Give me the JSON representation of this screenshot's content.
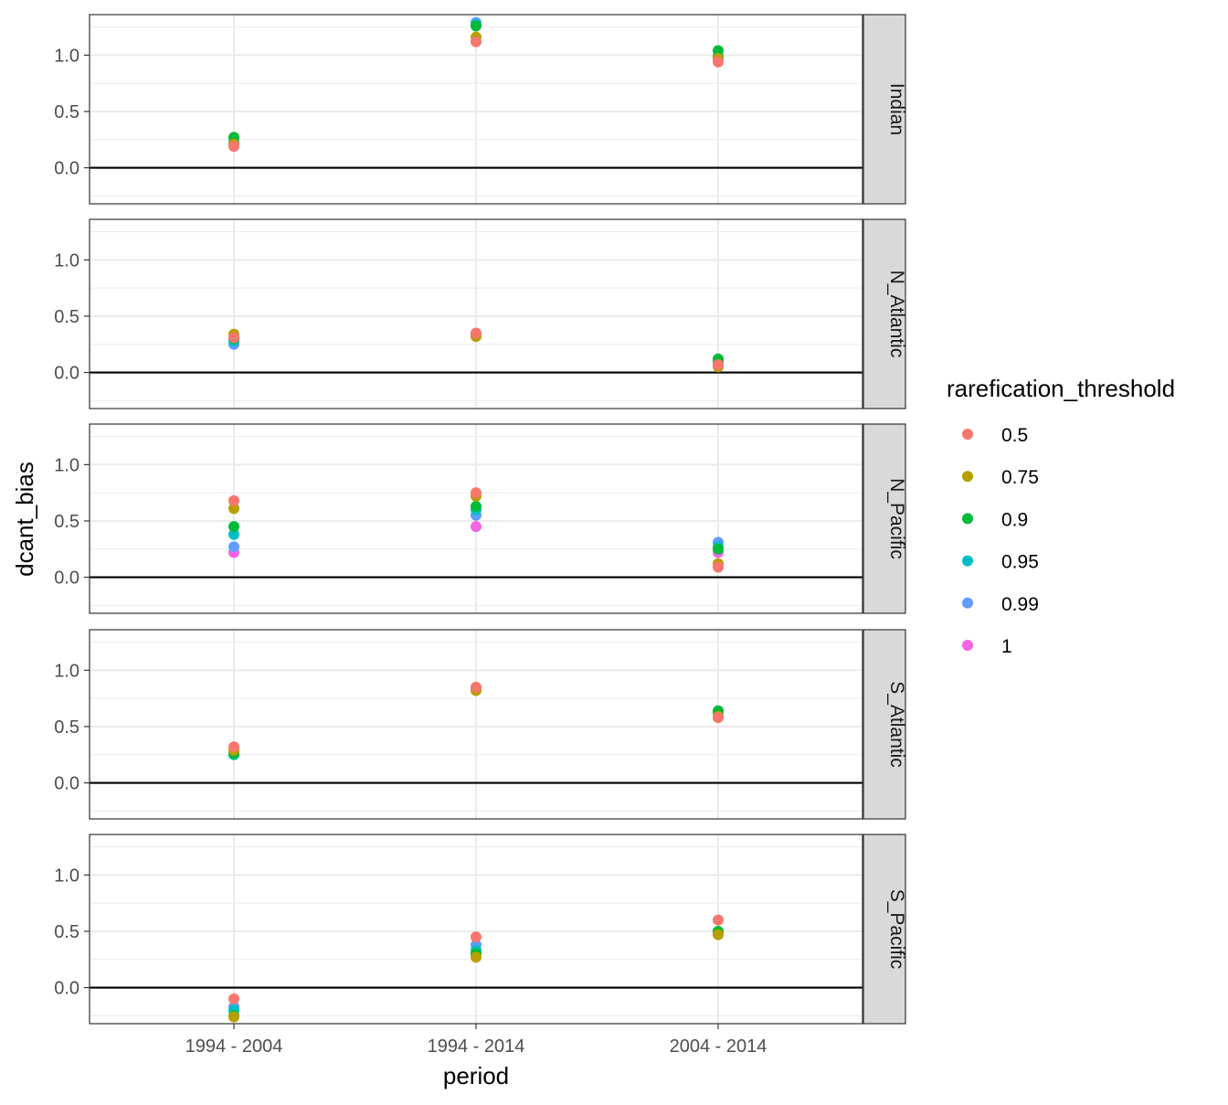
{
  "chart_data": {
    "type": "scatter",
    "facet_by": "region",
    "xlabel": "period",
    "ylabel": "dcant_bias",
    "categories": [
      "1994 - 2004",
      "1994 - 2014",
      "2004 - 2014"
    ],
    "ylim": [
      -0.32,
      1.36
    ],
    "yticks": [
      0.0,
      0.5,
      1.0
    ],
    "yticks_labels": [
      "0.0",
      "0.5",
      "1.0"
    ],
    "reference_line_y": 0,
    "grid": true,
    "legend": {
      "title": "rarefication_threshold",
      "position": "right",
      "entries": [
        {
          "label": "0.5",
          "color": "#F8766D"
        },
        {
          "label": "0.75",
          "color": "#B79F00"
        },
        {
          "label": "0.9",
          "color": "#00BA38"
        },
        {
          "label": "0.95",
          "color": "#00BFC4"
        },
        {
          "label": "0.99",
          "color": "#619CFF"
        },
        {
          "label": "1",
          "color": "#F564E3"
        }
      ]
    },
    "panels": [
      {
        "name": "Indian",
        "series": [
          {
            "name": "0.99",
            "values": [
              0.23,
              1.29,
              0.99
            ]
          },
          {
            "name": "0.95",
            "values": [
              0.22,
              1.27,
              0.99
            ]
          },
          {
            "name": "0.9",
            "values": [
              0.27,
              1.26,
              1.04
            ]
          },
          {
            "name": "0.75",
            "values": [
              0.21,
              1.16,
              0.97
            ]
          },
          {
            "name": "0.5",
            "values": [
              0.19,
              1.12,
              0.94
            ]
          }
        ]
      },
      {
        "name": "N_Atlantic",
        "series": [
          {
            "name": "0.99",
            "values": [
              0.25,
              0.33,
              0.09
            ]
          },
          {
            "name": "0.95",
            "values": [
              0.28,
              0.33,
              0.1
            ]
          },
          {
            "name": "0.9",
            "values": [
              0.3,
              0.33,
              0.12
            ]
          },
          {
            "name": "0.75",
            "values": [
              0.34,
              0.32,
              0.05
            ]
          },
          {
            "name": "0.5",
            "values": [
              0.31,
              0.35,
              0.07
            ]
          }
        ]
      },
      {
        "name": "N_Pacific",
        "series": [
          {
            "name": "1",
            "values": [
              0.22,
              0.45,
              0.22
            ]
          },
          {
            "name": "0.99",
            "values": [
              0.27,
              0.55,
              0.31
            ]
          },
          {
            "name": "0.95",
            "values": [
              0.38,
              0.6,
              0.27
            ]
          },
          {
            "name": "0.9",
            "values": [
              0.45,
              0.63,
              0.25
            ]
          },
          {
            "name": "0.75",
            "values": [
              0.61,
              0.72,
              0.12
            ]
          },
          {
            "name": "0.5",
            "values": [
              0.68,
              0.75,
              0.09
            ]
          }
        ]
      },
      {
        "name": "S_Atlantic",
        "series": [
          {
            "name": "0.95",
            "values": [
              0.25,
              0.83,
              0.62
            ]
          },
          {
            "name": "0.9",
            "values": [
              0.26,
              0.84,
              0.64
            ]
          },
          {
            "name": "0.75",
            "values": [
              0.29,
              0.82,
              0.59
            ]
          },
          {
            "name": "0.5",
            "values": [
              0.32,
              0.85,
              0.58
            ]
          }
        ]
      },
      {
        "name": "S_Pacific",
        "series": [
          {
            "name": "0.99",
            "values": [
              -0.17,
              0.38,
              0.49
            ]
          },
          {
            "name": "0.95",
            "values": [
              -0.2,
              0.33,
              0.49
            ]
          },
          {
            "name": "0.9",
            "values": [
              -0.25,
              0.3,
              0.5
            ]
          },
          {
            "name": "0.75",
            "values": [
              -0.26,
              0.27,
              0.47
            ]
          },
          {
            "name": "0.5",
            "values": [
              -0.1,
              0.45,
              0.6
            ]
          }
        ]
      }
    ]
  }
}
